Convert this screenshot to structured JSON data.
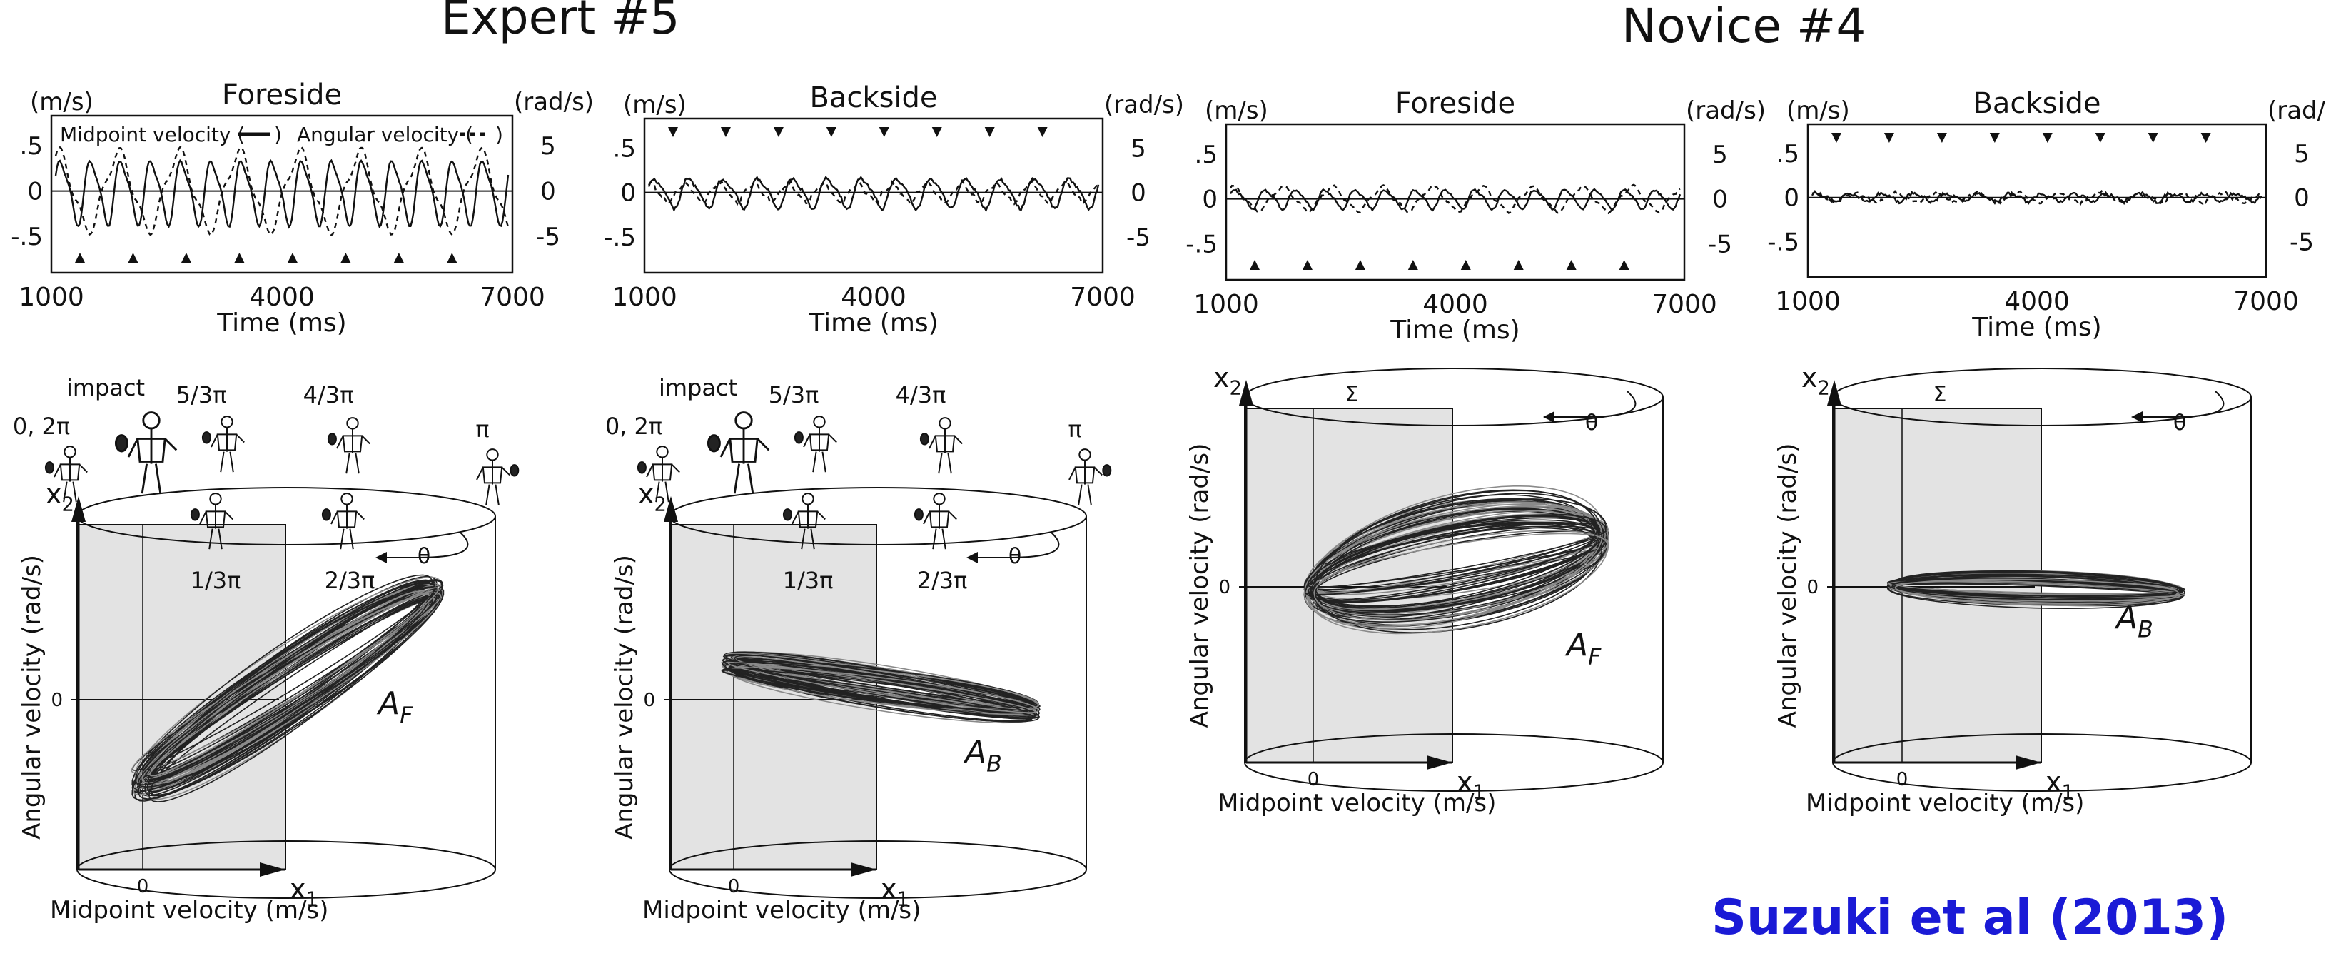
{
  "headers": {
    "expert": "Expert #5",
    "novice": "Novice #4"
  },
  "citation": "Suzuki et al (2013)",
  "time_series": {
    "left_unit": "(m/s)",
    "right_unit": "(rad/s)",
    "left_ticks": [
      ".5",
      "0",
      "-.5"
    ],
    "right_ticks": [
      "5",
      "0",
      "-5"
    ],
    "x_ticks": [
      "1000",
      "4000",
      "7000"
    ],
    "x_label": "Time (ms)",
    "legend": {
      "midpoint": "Midpoint velocity (",
      "angular": "Angular velocity (",
      "close": ")"
    },
    "panels": [
      {
        "title": "Foreside",
        "subject": "Expert #5",
        "show_legend": true
      },
      {
        "title": "Backside",
        "subject": "Expert #5",
        "show_legend": false
      },
      {
        "title": "Foreside",
        "subject": "Novice #4",
        "show_legend": false
      },
      {
        "title": "Backside",
        "subject": "Novice #4",
        "show_legend": false
      }
    ]
  },
  "phase_portraits": {
    "x_axis_label": "Midpoint velocity (m/s)",
    "y_axis_label": "Angular velocity (rad/s)",
    "x_axis_symbol": "x",
    "x_axis_subscript": "1",
    "y_axis_symbol": "x",
    "y_axis_subscript": "2",
    "zero_label": "0",
    "theta_label": "θ",
    "sigma_label": "Σ",
    "phase_labels": {
      "impact": "impact",
      "p0": "0, 2π",
      "p53": "5/3π",
      "p43": "4/3π",
      "pi": "π",
      "p13": "1/3π",
      "p23": "2/3π"
    },
    "panels": [
      {
        "attractor": "A",
        "attractor_sub": "F",
        "subject": "Expert #5"
      },
      {
        "attractor": "A",
        "attractor_sub": "B",
        "subject": "Expert #5"
      },
      {
        "attractor": "A",
        "attractor_sub": "F",
        "subject": "Novice #4"
      },
      {
        "attractor": "A",
        "attractor_sub": "B",
        "subject": "Novice #4"
      }
    ]
  }
}
